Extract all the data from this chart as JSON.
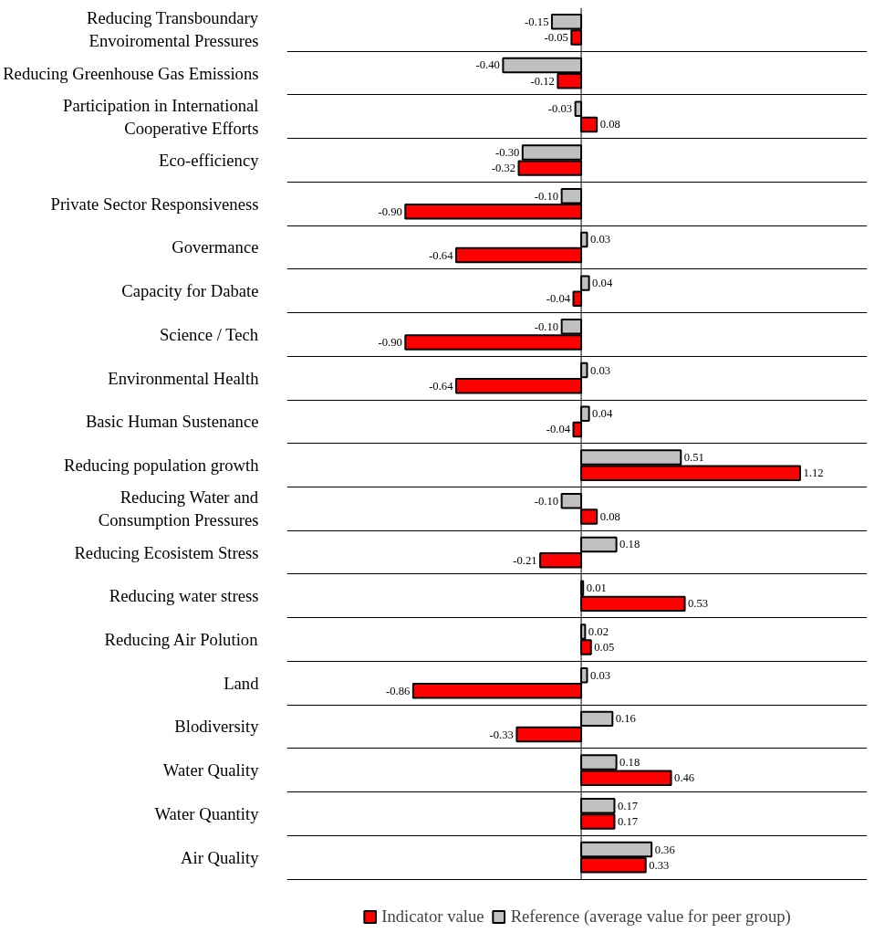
{
  "chart_data": {
    "type": "bar",
    "orientation": "horizontal",
    "categories": [
      "Reducing Transboundary Envoiromental Pressures",
      "Reducing Greenhouse Gas Emissions",
      "Participation in International Cooperative Efforts",
      "Eco-efficiency",
      "Private Sector Responsiveness",
      "Govermance",
      "Capacity for Dabate",
      "Science / Tech",
      "Environmental Health",
      "Basic Human Sustenance",
      "Reducing population growth",
      "Reducing Water and Consumption Pressures",
      "Reducing Ecosistem Stress",
      "Reducing water stress",
      "Reducing Air Polution",
      "Land",
      "Blodiversity",
      "Water Quality",
      "Water Quantity",
      "Air Quality"
    ],
    "series": [
      {
        "name": "Indicator value",
        "color": "#ff0000",
        "values": [
          -0.05,
          -0.12,
          0.08,
          -0.32,
          -0.9,
          -0.64,
          -0.04,
          -0.9,
          -0.64,
          -0.04,
          1.12,
          0.08,
          -0.21,
          0.53,
          0.05,
          -0.86,
          -0.33,
          0.46,
          0.17,
          0.33
        ],
        "value_labels": [
          "-0.05",
          "-0.12",
          "0.08",
          "-0.32",
          "-0.90",
          "-0.64",
          "-0.04",
          "-0.90",
          "-0.64",
          "-0.04",
          "1.12",
          "0.08",
          "-0.21",
          "0.53",
          "0.05",
          "-0.86",
          "-0.33",
          "0.46",
          "0.17",
          "0.33"
        ]
      },
      {
        "name": "Reference (average value for peer group)",
        "color": "#c0c0c0",
        "values": [
          -0.15,
          -0.4,
          -0.03,
          -0.3,
          -0.1,
          0.03,
          0.04,
          -0.1,
          0.03,
          0.04,
          0.51,
          -0.1,
          0.18,
          0.01,
          0.02,
          0.03,
          0.16,
          0.18,
          0.17,
          0.36
        ],
        "value_labels": [
          "-0.15",
          "-0.40",
          "-0.03",
          "-0.30",
          "-0.10",
          "0.03",
          "0.04",
          "-0.10",
          "0.03",
          "0.04",
          "0.51",
          "-0.10",
          "0.18",
          "0.01",
          "0.02",
          "0.03",
          "0.16",
          "0.18",
          "0.17",
          "0.36"
        ]
      }
    ],
    "grid": "y",
    "legend": "bottom",
    "tick_labels": "y"
  }
}
